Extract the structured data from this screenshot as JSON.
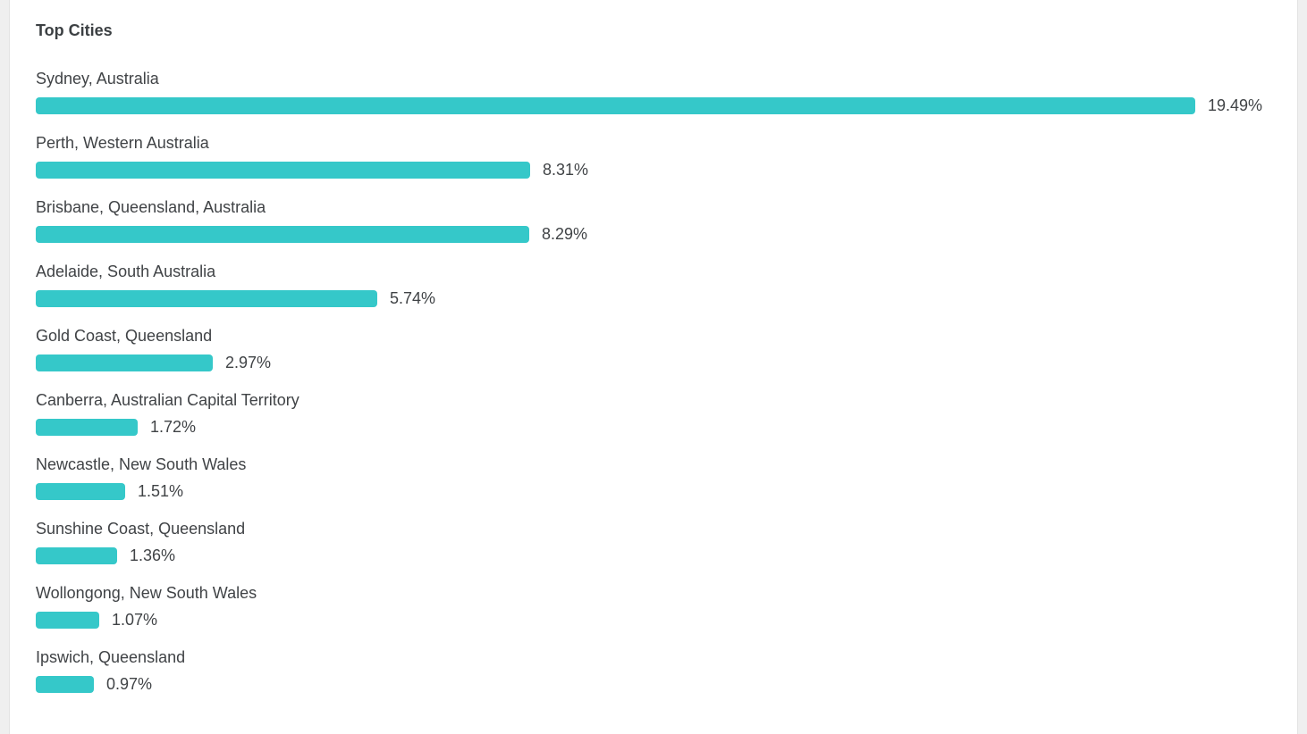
{
  "card": {
    "title": "Top Cities"
  },
  "colors": {
    "page_background": "#efefef",
    "card_background": "#ffffff",
    "bar": "#35c8c9",
    "text": "#404346",
    "title_text": "#3c4043"
  },
  "chart_data": {
    "type": "bar",
    "orientation": "horizontal",
    "title": "Top Cities",
    "categories": [
      "Sydney, Australia",
      "Perth, Western Australia",
      "Brisbane, Queensland, Australia",
      "Adelaide, South Australia",
      "Gold Coast, Queensland",
      "Canberra, Australian Capital Territory",
      "Newcastle, New South Wales",
      "Sunshine Coast, Queensland",
      "Wollongong, New South Wales",
      "Ipswich, Queensland"
    ],
    "values": [
      19.49,
      8.31,
      8.29,
      5.74,
      2.97,
      1.72,
      1.51,
      1.36,
      1.07,
      0.97
    ],
    "value_labels": [
      "19.49%",
      "8.31%",
      "8.29%",
      "5.74%",
      "2.97%",
      "1.72%",
      "1.51%",
      "1.36%",
      "1.07%",
      "0.97%"
    ],
    "unit": "%",
    "axis_max": 19.49,
    "bar_color": "#35c8c9",
    "grid": false,
    "legend": "none"
  }
}
